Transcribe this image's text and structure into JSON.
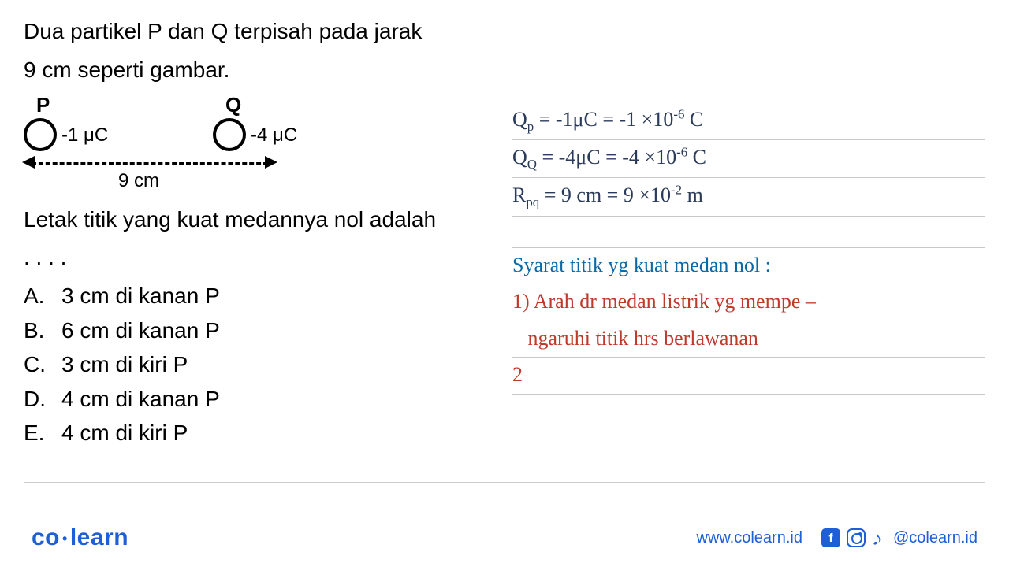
{
  "problem": {
    "line1": "Dua partikel P dan Q terpisah pada jarak",
    "line2": "9 cm seperti gambar.",
    "labelP": "P",
    "labelQ": "Q",
    "chargeP": "-1 μC",
    "chargeQ": "-4 μC",
    "distance": "9 cm",
    "question": "Letak titik yang kuat medannya nol adalah",
    "dots": ". . . ."
  },
  "options": [
    {
      "letter": "A.",
      "text": "3 cm di kanan P"
    },
    {
      "letter": "B.",
      "text": "6 cm di kanan P"
    },
    {
      "letter": "C.",
      "text": "3 cm di kiri P"
    },
    {
      "letter": "D.",
      "text": "4 cm di kanan P"
    },
    {
      "letter": "E.",
      "text": "4 cm di kiri P"
    }
  ],
  "handwriting": {
    "given": [
      {
        "html": "Q<span class='sub'>p</span> = -1μC  = -1 ×10<span class='sup'>-6</span> C",
        "color": "hw-black"
      },
      {
        "html": "Q<span class='sub'>Q</span> = -4μC  = -4 ×10<span class='sup'>-6</span> C",
        "color": "hw-black"
      },
      {
        "html": "R<span class='sub'>pq</span> = 9 cm =  9 ×10<span class='sup'>-2</span> m",
        "color": "hw-black"
      }
    ],
    "notes": [
      {
        "html": "Syarat titik yg kuat medan nol :",
        "color": "hw-blue"
      },
      {
        "html": "1) Arah dr medan listrik yg mempe –",
        "color": "hw-red"
      },
      {
        "html": "&nbsp;&nbsp;&nbsp;ngaruhi titik hrs berlawanan",
        "color": "hw-red"
      },
      {
        "html": "2",
        "color": "hw-red"
      }
    ],
    "line_color": "#c8c8c8",
    "fontsize": 26
  },
  "styling": {
    "text_color": "#000000",
    "problem_fontsize": 28,
    "brand_color": "#1e5fd8",
    "hw_black": "#2a3a5a",
    "hw_blue": "#0a6aa8",
    "hw_red": "#c0392b",
    "background": "#ffffff"
  },
  "footer": {
    "logo_co": "co",
    "logo_learn": "learn",
    "website": "www.colearn.id",
    "handle": "@colearn.id"
  }
}
